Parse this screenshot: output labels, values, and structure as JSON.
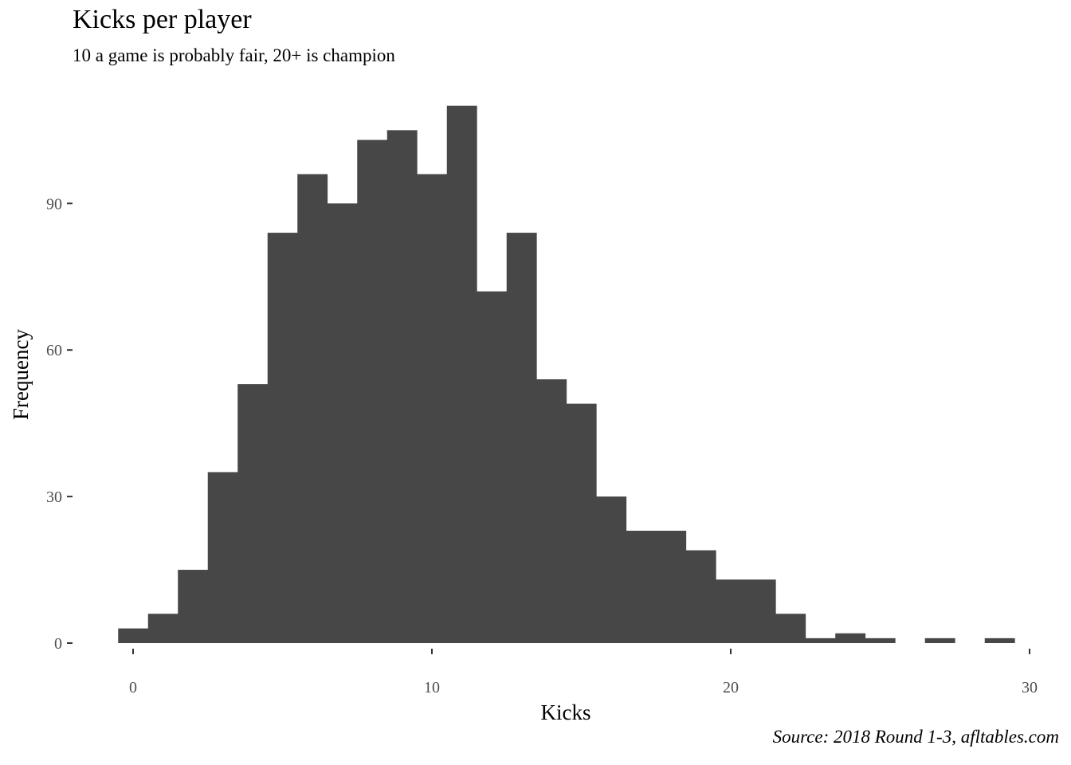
{
  "chart_data": {
    "type": "bar",
    "title": "Kicks per player",
    "subtitle": "10 a game is probably fair, 20+ is champion",
    "caption": "Source: 2018 Round 1-3, afltables.com",
    "xlabel": "Kicks",
    "ylabel": "Frequency",
    "bin_width": 1,
    "bins": [
      {
        "x": 0,
        "count": 3
      },
      {
        "x": 1,
        "count": 6
      },
      {
        "x": 2,
        "count": 15
      },
      {
        "x": 3,
        "count": 35
      },
      {
        "x": 4,
        "count": 53
      },
      {
        "x": 5,
        "count": 84
      },
      {
        "x": 6,
        "count": 96
      },
      {
        "x": 7,
        "count": 90
      },
      {
        "x": 8,
        "count": 103
      },
      {
        "x": 9,
        "count": 105
      },
      {
        "x": 10,
        "count": 96
      },
      {
        "x": 11,
        "count": 110
      },
      {
        "x": 12,
        "count": 72
      },
      {
        "x": 13,
        "count": 84
      },
      {
        "x": 14,
        "count": 54
      },
      {
        "x": 15,
        "count": 49
      },
      {
        "x": 16,
        "count": 30
      },
      {
        "x": 17,
        "count": 23
      },
      {
        "x": 18,
        "count": 23
      },
      {
        "x": 19,
        "count": 19
      },
      {
        "x": 20,
        "count": 13
      },
      {
        "x": 21,
        "count": 13
      },
      {
        "x": 22,
        "count": 6
      },
      {
        "x": 23,
        "count": 1
      },
      {
        "x": 24,
        "count": 2
      },
      {
        "x": 25,
        "count": 1
      },
      {
        "x": 26,
        "count": 0
      },
      {
        "x": 27,
        "count": 1
      },
      {
        "x": 28,
        "count": 0
      },
      {
        "x": 29,
        "count": 1
      }
    ],
    "xticks": [
      0,
      10,
      20,
      30
    ],
    "yticks": [
      0,
      30,
      60,
      90
    ],
    "xlim": [
      -0.5,
      30
    ],
    "ylim": [
      0,
      110
    ],
    "grid": false,
    "bar_color": "#474747",
    "tick_color": "#4d4d4d"
  }
}
